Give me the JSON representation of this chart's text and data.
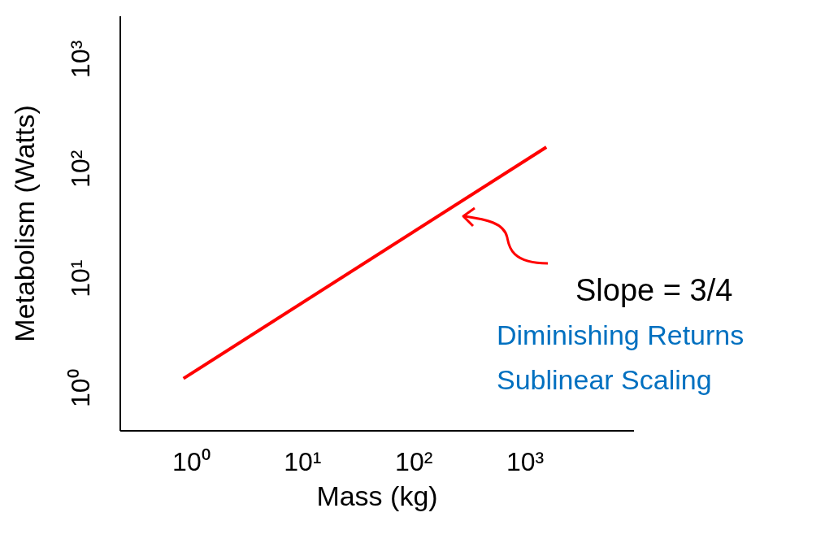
{
  "chart_data": {
    "type": "line",
    "xlabel": "Mass (kg)",
    "ylabel": "Metabolism (Watts)",
    "log": "xy",
    "x": [
      0.85,
      1550
    ],
    "series": [
      {
        "color": "#ff0000",
        "values": [
          1.23,
          158
        ]
      }
    ],
    "xlim": [
      0.23,
      9500
    ],
    "ylim": [
      0.41,
      2460
    ],
    "xticks": [
      {
        "value": 1,
        "label": "10⁰"
      },
      {
        "value": 10,
        "label": "10¹"
      },
      {
        "value": 100,
        "label": "10²"
      },
      {
        "value": 1000,
        "label": "10³"
      }
    ],
    "yticks": [
      {
        "value": 1,
        "label": "10⁰"
      },
      {
        "value": 10,
        "label": "10¹"
      },
      {
        "value": 100,
        "label": "10²"
      },
      {
        "value": 1000,
        "label": "10³"
      }
    ],
    "annotations": [
      "Slope = 3/4",
      "Diminishing Returns",
      "Sublinear Scaling"
    ]
  }
}
